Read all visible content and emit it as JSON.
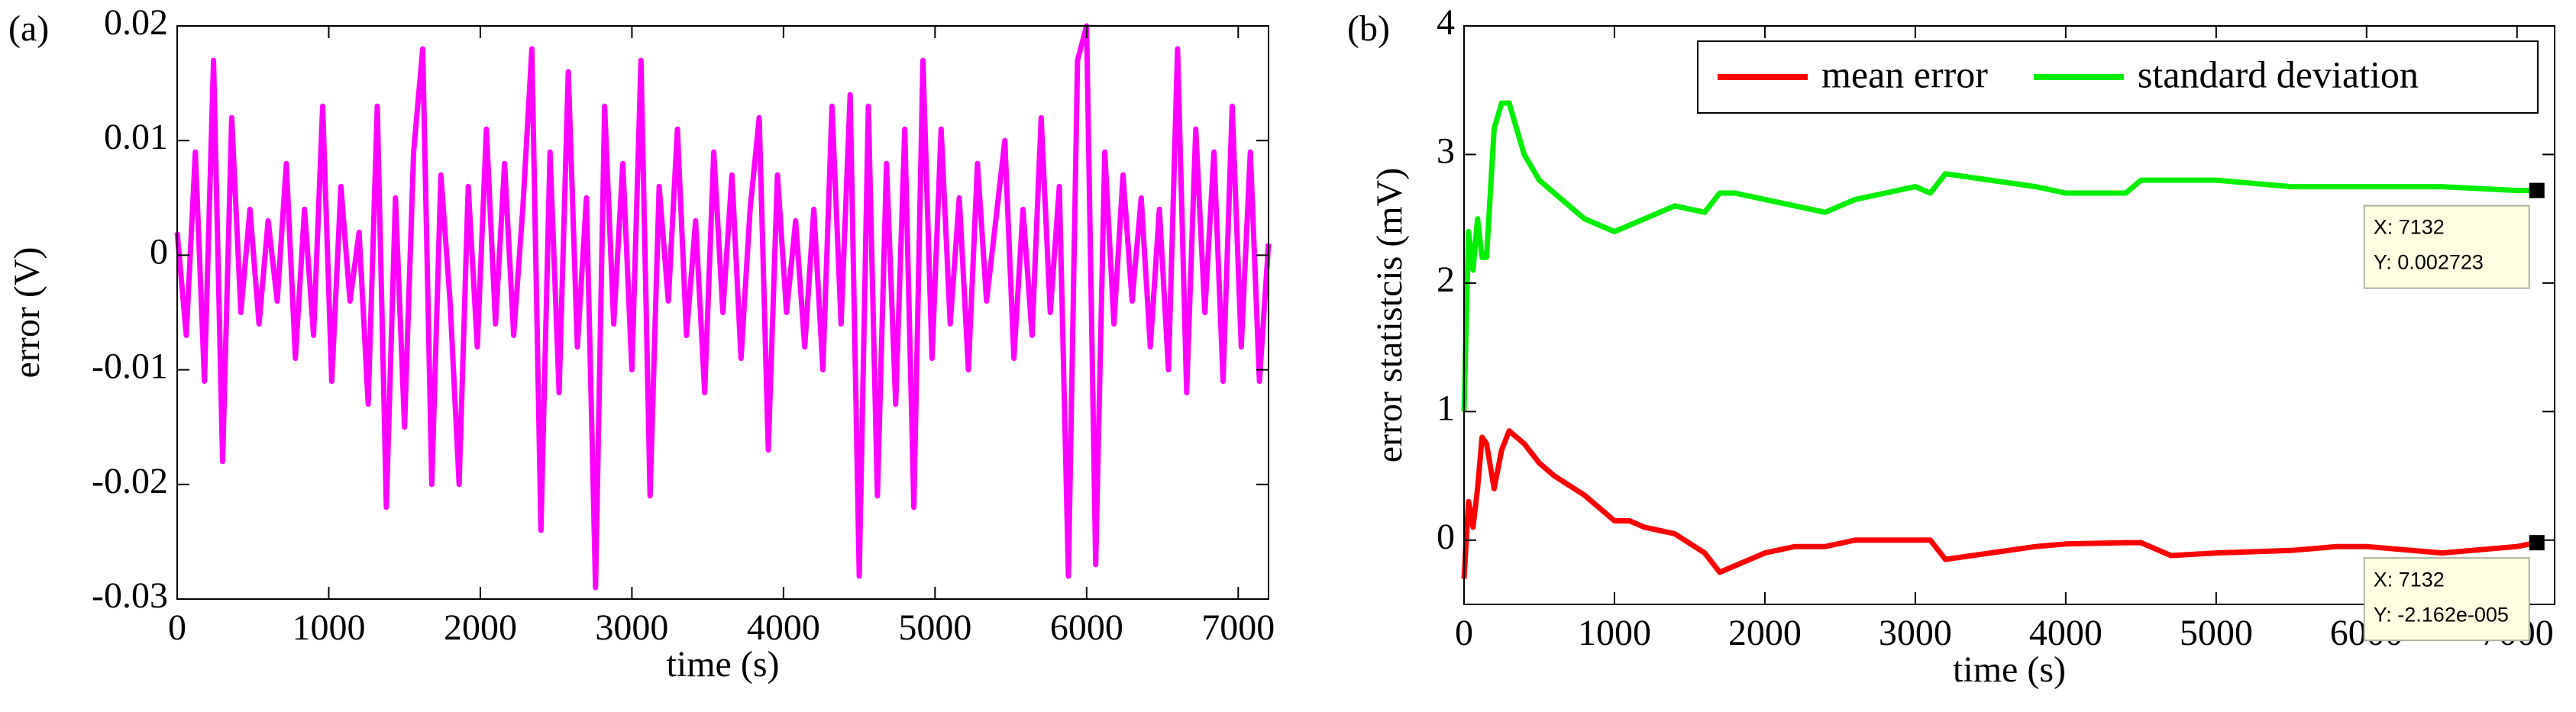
{
  "chart_data": [
    {
      "type": "line",
      "panel_label": "(a)",
      "xlabel": "time (s)",
      "ylabel": "error (V)",
      "x": [
        0,
        60,
        120,
        180,
        240,
        300,
        360,
        420,
        480,
        540,
        600,
        660,
        720,
        780,
        840,
        900,
        960,
        1020,
        1080,
        1140,
        1200,
        1260,
        1320,
        1380,
        1440,
        1500,
        1560,
        1620,
        1680,
        1740,
        1800,
        1860,
        1920,
        1980,
        2040,
        2100,
        2160,
        2220,
        2280,
        2340,
        2400,
        2460,
        2520,
        2580,
        2640,
        2700,
        2760,
        2820,
        2880,
        2940,
        3000,
        3060,
        3120,
        3180,
        3240,
        3300,
        3360,
        3420,
        3480,
        3540,
        3600,
        3660,
        3720,
        3780,
        3840,
        3900,
        3960,
        4020,
        4080,
        4140,
        4200,
        4260,
        4320,
        4380,
        4440,
        4500,
        4560,
        4620,
        4680,
        4740,
        4800,
        4860,
        4920,
        4980,
        5040,
        5100,
        5160,
        5220,
        5280,
        5340,
        5400,
        5460,
        5520,
        5580,
        5640,
        5700,
        5760,
        5820,
        5880,
        5940,
        6000,
        6060,
        6120,
        6180,
        6240,
        6300,
        6360,
        6420,
        6480,
        6540,
        6600,
        6660,
        6720,
        6780,
        6840,
        6900,
        6960,
        7020,
        7080,
        7140,
        7200
      ],
      "series": [
        {
          "color": "#ff00ff",
          "values": [
            0.002,
            -0.007,
            0.009,
            -0.011,
            0.017,
            -0.018,
            0.012,
            -0.005,
            0.004,
            -0.006,
            0.003,
            -0.004,
            0.008,
            -0.009,
            0.004,
            -0.007,
            0.013,
            -0.011,
            0.006,
            -0.004,
            0.002,
            -0.013,
            0.013,
            -0.022,
            0.005,
            -0.015,
            0.009,
            0.018,
            -0.02,
            0.007,
            -0.004,
            -0.02,
            0.006,
            -0.008,
            0.011,
            -0.006,
            0.008,
            -0.007,
            0.004,
            0.018,
            -0.024,
            0.009,
            -0.012,
            0.016,
            -0.008,
            0.005,
            -0.029,
            0.013,
            -0.006,
            0.008,
            -0.01,
            0.017,
            -0.021,
            0.006,
            -0.004,
            0.011,
            -0.007,
            0.003,
            -0.012,
            0.009,
            -0.005,
            0.007,
            -0.009,
            0.004,
            0.012,
            -0.017,
            0.007,
            -0.005,
            0.003,
            -0.008,
            0.004,
            -0.01,
            0.013,
            -0.006,
            0.014,
            -0.028,
            0.013,
            -0.021,
            0.008,
            -0.013,
            0.011,
            -0.022,
            0.017,
            -0.009,
            0.011,
            -0.006,
            0.005,
            -0.01,
            0.008,
            -0.004,
            0.003,
            0.01,
            -0.009,
            0.004,
            -0.007,
            0.012,
            -0.005,
            0.006,
            -0.028,
            0.017,
            0.02,
            -0.027,
            0.009,
            -0.006,
            0.007,
            -0.004,
            0.005,
            -0.008,
            0.004,
            -0.01,
            0.018,
            -0.012,
            0.011,
            -0.005,
            0.009,
            -0.011,
            0.013,
            -0.008,
            0.009,
            -0.011,
            0.001
          ]
        }
      ],
      "xlim": [
        0,
        7200
      ],
      "xticks": [
        0,
        1000,
        2000,
        3000,
        4000,
        5000,
        6000,
        7000
      ],
      "ylim": [
        -0.03,
        0.02
      ],
      "yticks": [
        -0.03,
        -0.02,
        -0.01,
        0,
        0.01,
        0.02
      ]
    },
    {
      "type": "line",
      "panel_label": "(b)",
      "xlabel": "time (s)",
      "ylabel": "error statistcis (mV)",
      "x": [
        0,
        30,
        60,
        90,
        120,
        150,
        200,
        250,
        300,
        350,
        400,
        500,
        600,
        800,
        1000,
        1100,
        1200,
        1400,
        1600,
        1700,
        1800,
        2000,
        2200,
        2400,
        2600,
        2800,
        3000,
        3100,
        3200,
        3500,
        3800,
        4000,
        4400,
        4500,
        4700,
        5000,
        5500,
        5800,
        6000,
        6500,
        7000,
        7132
      ],
      "series": [
        {
          "name": "mean error",
          "color": "#ff0000",
          "values": [
            -0.3,
            0.3,
            0.1,
            0.4,
            0.8,
            0.75,
            0.4,
            0.7,
            0.85,
            0.8,
            0.75,
            0.6,
            0.5,
            0.35,
            0.15,
            0.15,
            0.1,
            0.05,
            -0.1,
            -0.25,
            -0.2,
            -0.1,
            -0.05,
            -0.05,
            0,
            0,
            0,
            0,
            -0.15,
            -0.1,
            -0.05,
            -0.03,
            -0.02,
            -0.02,
            -0.12,
            -0.1,
            -0.08,
            -0.05,
            -0.05,
            -0.1,
            -0.05,
            -0.02
          ]
        },
        {
          "name": "standard deviation",
          "color": "#00ee00",
          "values": [
            1.0,
            2.4,
            2.1,
            2.5,
            2.2,
            2.2,
            3.2,
            3.4,
            3.4,
            3.2,
            3.0,
            2.8,
            2.7,
            2.5,
            2.4,
            2.45,
            2.5,
            2.6,
            2.55,
            2.7,
            2.7,
            2.65,
            2.6,
            2.55,
            2.65,
            2.7,
            2.75,
            2.7,
            2.85,
            2.8,
            2.75,
            2.7,
            2.7,
            2.8,
            2.8,
            2.8,
            2.75,
            2.75,
            2.75,
            2.75,
            2.72,
            2.72
          ]
        }
      ],
      "xlim": [
        0,
        7250
      ],
      "xticks": [
        0,
        1000,
        2000,
        3000,
        4000,
        5000,
        6000,
        7000
      ],
      "ylim": [
        -0.5,
        4
      ],
      "yticks": [
        0,
        1,
        2,
        3,
        4
      ],
      "legend": "upper right",
      "annotations": [
        {
          "x_text": "X: 7132",
          "y_text": "Y: 0.002723"
        },
        {
          "x_text": "X: 7132",
          "y_text": "Y: -2.162e-005"
        }
      ]
    }
  ]
}
